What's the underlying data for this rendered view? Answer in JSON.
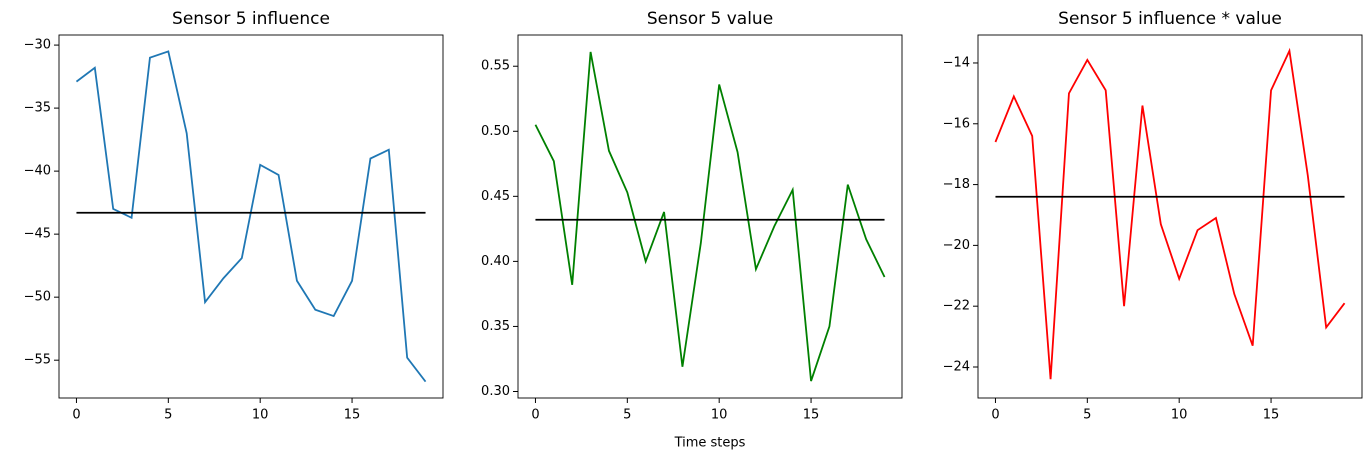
{
  "chart_data": [
    {
      "type": "line",
      "title": "Sensor 5 influence",
      "x": [
        0,
        1,
        2,
        3,
        4,
        5,
        6,
        7,
        8,
        9,
        10,
        11,
        12,
        13,
        14,
        15,
        16,
        17,
        18,
        19
      ],
      "series": [
        {
          "color": "#1f77b4",
          "values": [
            -32.9,
            -31.8,
            -43.0,
            -43.7,
            -31.0,
            -30.5,
            -37.0,
            -50.4,
            -48.5,
            -46.9,
            -39.5,
            -40.3,
            -48.7,
            -51.0,
            -51.5,
            -48.7,
            -39.0,
            -38.3,
            -54.8,
            -56.7
          ]
        }
      ],
      "hline": -43.3,
      "hline_color": "#000000",
      "xlim": [
        -0.95,
        19.95
      ],
      "xticks": [
        0,
        5,
        10,
        15
      ],
      "ylim": [
        -58.0,
        -29.2
      ],
      "yticks": [
        {
          "value": -55,
          "label": "−55"
        },
        {
          "value": -50,
          "label": "−50"
        },
        {
          "value": -45,
          "label": "−45"
        },
        {
          "value": -40,
          "label": "−40"
        },
        {
          "value": -35,
          "label": "−35"
        },
        {
          "value": -30,
          "label": "−30"
        }
      ]
    },
    {
      "type": "line",
      "title": "Sensor 5 value",
      "x_label": "Time steps",
      "x": [
        0,
        1,
        2,
        3,
        4,
        5,
        6,
        7,
        8,
        9,
        10,
        11,
        12,
        13,
        14,
        15,
        16,
        17,
        18,
        19
      ],
      "series": [
        {
          "color": "#008000",
          "values": [
            0.505,
            0.477,
            0.382,
            0.561,
            0.485,
            0.453,
            0.4,
            0.438,
            0.319,
            0.414,
            0.536,
            0.484,
            0.394,
            0.427,
            0.455,
            0.308,
            0.35,
            0.459,
            0.417,
            0.388
          ]
        }
      ],
      "hline": 0.432,
      "hline_color": "#000000",
      "xlim": [
        -0.95,
        19.95
      ],
      "xticks": [
        0,
        5,
        10,
        15
      ],
      "ylim": [
        0.295,
        0.574
      ],
      "yticks": [
        {
          "value": 0.3,
          "label": "0.30"
        },
        0.35,
        {
          "value": 0.4,
          "label": "0.40"
        },
        0.45,
        {
          "value": 0.5,
          "label": "0.50"
        },
        0.55
      ]
    },
    {
      "type": "line",
      "title": "Sensor 5 influence * value",
      "x": [
        0,
        1,
        2,
        3,
        4,
        5,
        6,
        7,
        8,
        9,
        10,
        11,
        12,
        13,
        14,
        15,
        16,
        17,
        18,
        19
      ],
      "series": [
        {
          "color": "#ff0000",
          "values": [
            -16.6,
            -15.1,
            -16.4,
            -24.4,
            -15.0,
            -13.9,
            -14.9,
            -22.0,
            -15.4,
            -19.3,
            -21.1,
            -19.5,
            -19.1,
            -21.6,
            -23.3,
            -14.9,
            -13.6,
            -17.7,
            -22.7,
            -21.9
          ]
        }
      ],
      "hline": -18.4,
      "hline_color": "#000000",
      "xlim": [
        -0.95,
        19.95
      ],
      "xticks": [
        0,
        5,
        10,
        15
      ],
      "ylim": [
        -25.02,
        -13.08
      ],
      "yticks": [
        {
          "value": -24,
          "label": "−24"
        },
        {
          "value": -22,
          "label": "−22"
        },
        {
          "value": -20,
          "label": "−20"
        },
        {
          "value": -18,
          "label": "−18"
        },
        {
          "value": -16,
          "label": "−16"
        },
        {
          "value": -14,
          "label": "−14"
        }
      ]
    }
  ]
}
